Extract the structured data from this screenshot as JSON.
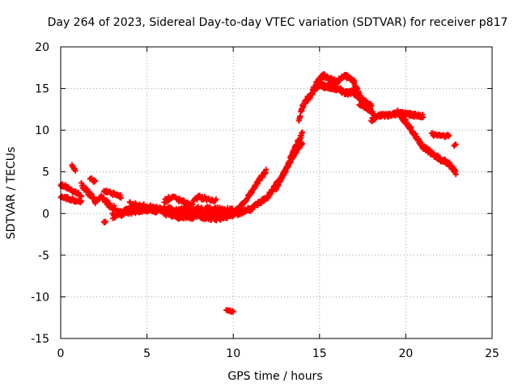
{
  "chart_data": {
    "type": "scatter",
    "title": "Day 264 of 2023, Sidereal Day-to-day VTEC variation (SDTVAR) for receiver p817",
    "xlabel": "GPS time / hours",
    "ylabel": "SDTVAR / TECUs",
    "xlim": [
      0,
      25
    ],
    "ylim": [
      -15,
      20
    ],
    "xticks": [
      0,
      5,
      10,
      15,
      20,
      25
    ],
    "yticks": [
      -15,
      -10,
      -5,
      0,
      5,
      10,
      15,
      20
    ],
    "grid": true,
    "marker": "+",
    "series": [
      {
        "name": "SDTVAR",
        "color": "#ff0000",
        "traces": [
          {
            "x": [
              0.0,
              0.3,
              0.6,
              0.9,
              1.2
            ],
            "y": [
              3.5,
              3.2,
              2.8,
              2.5,
              2.2
            ],
            "jitter": 0.4,
            "step": 0.04
          },
          {
            "x": [
              0.0,
              0.4,
              0.8,
              1.2
            ],
            "y": [
              2.0,
              1.8,
              1.6,
              1.5
            ],
            "jitter": 0.4,
            "step": 0.04
          },
          {
            "x": [
              0.65,
              0.85
            ],
            "y": [
              5.8,
              5.2
            ],
            "jitter": 0.3,
            "step": 0.04
          },
          {
            "x": [
              1.2,
              1.6,
              2.0,
              2.4,
              2.8,
              3.2
            ],
            "y": [
              3.5,
              2.5,
              1.5,
              2.0,
              1.0,
              0.5
            ],
            "jitter": 0.6,
            "step": 0.04
          },
          {
            "x": [
              1.7,
              2.0
            ],
            "y": [
              4.3,
              3.8
            ],
            "jitter": 0.3,
            "step": 0.04
          },
          {
            "x": [
              2.5,
              3.5
            ],
            "y": [
              2.8,
              2.0
            ],
            "jitter": 0.4,
            "step": 0.04
          },
          {
            "x": [
              2.5,
              2.6
            ],
            "y": [
              -1.0,
              -1.0
            ],
            "jitter": 0.2,
            "step": 0.04
          },
          {
            "x": [
              3.0,
              4.0,
              5.0,
              6.0,
              7.0,
              8.0,
              9.0,
              10.0
            ],
            "y": [
              -0.2,
              0.3,
              0.6,
              0.2,
              -0.4,
              -0.2,
              -0.5,
              0.0
            ],
            "jitter": 0.8,
            "step": 0.025
          },
          {
            "x": [
              4.0,
              5.5,
              7.0,
              8.5,
              10.0
            ],
            "y": [
              1.0,
              0.5,
              0.3,
              0.5,
              0.2
            ],
            "jitter": 0.8,
            "step": 0.03
          },
          {
            "x": [
              6.0,
              6.5,
              7.5,
              8.0,
              9.0
            ],
            "y": [
              1.5,
              2.0,
              1.0,
              2.0,
              1.5
            ],
            "jitter": 0.5,
            "step": 0.05
          },
          {
            "x": [
              9.6,
              10.0
            ],
            "y": [
              -11.6,
              -11.8
            ],
            "jitter": 0.2,
            "step": 0.04
          },
          {
            "x": [
              10.0,
              10.5,
              11.0,
              11.5,
              11.9
            ],
            "y": [
              0.0,
              1.0,
              2.4,
              4.0,
              5.1
            ],
            "jitter": 0.4,
            "step": 0.03
          },
          {
            "x": [
              10.2,
              11.0,
              12.0,
              12.5,
              13.0,
              13.5,
              14.0
            ],
            "y": [
              0.0,
              0.5,
              2.0,
              3.5,
              5.0,
              7.5,
              9.6
            ],
            "jitter": 0.5,
            "step": 0.025
          },
          {
            "x": [
              12.5,
              13.0,
              13.5,
              14.0
            ],
            "y": [
              3.0,
              5.0,
              7.0,
              8.5
            ],
            "jitter": 0.4,
            "step": 0.03
          },
          {
            "x": [
              13.8,
              14.0,
              14.3,
              14.6
            ],
            "y": [
              11.2,
              12.8,
              13.8,
              14.4
            ],
            "jitter": 0.5,
            "step": 0.03
          },
          {
            "x": [
              14.6,
              15.0,
              15.5,
              16.0,
              16.5,
              17.0,
              17.5,
              18.0
            ],
            "y": [
              14.8,
              15.4,
              15.2,
              15.0,
              14.5,
              14.5,
              13.6,
              12.8
            ],
            "jitter": 0.6,
            "step": 0.025
          },
          {
            "x": [
              14.8,
              15.2,
              15.6,
              16.0,
              16.5,
              17.0,
              17.3
            ],
            "y": [
              15.6,
              16.6,
              16.1,
              15.8,
              16.5,
              15.8,
              14.2
            ],
            "jitter": 0.5,
            "step": 0.025
          },
          {
            "x": [
              17.3,
              17.8,
              18.2
            ],
            "y": [
              13.2,
              12.6,
              11.8
            ],
            "jitter": 0.4,
            "step": 0.03
          },
          {
            "x": [
              18.0,
              18.5,
              19.0,
              19.5,
              20.0,
              20.5,
              21.0
            ],
            "y": [
              11.2,
              11.8,
              11.8,
              12.0,
              12.0,
              11.8,
              11.7
            ],
            "jitter": 0.4,
            "step": 0.03
          },
          {
            "x": [
              19.5,
              20.0,
              20.5,
              21.0,
              21.5,
              22.0,
              22.5,
              22.9
            ],
            "y": [
              12.2,
              11.0,
              9.5,
              8.0,
              7.2,
              6.5,
              6.0,
              4.8
            ],
            "jitter": 0.5,
            "step": 0.025
          },
          {
            "x": [
              21.5,
              22.5
            ],
            "y": [
              9.5,
              9.3
            ],
            "jitter": 0.4,
            "step": 0.04
          },
          {
            "x": [
              22.8,
              22.9
            ],
            "y": [
              8.2,
              8.2
            ],
            "jitter": 0.2,
            "step": 0.04
          }
        ]
      }
    ]
  }
}
